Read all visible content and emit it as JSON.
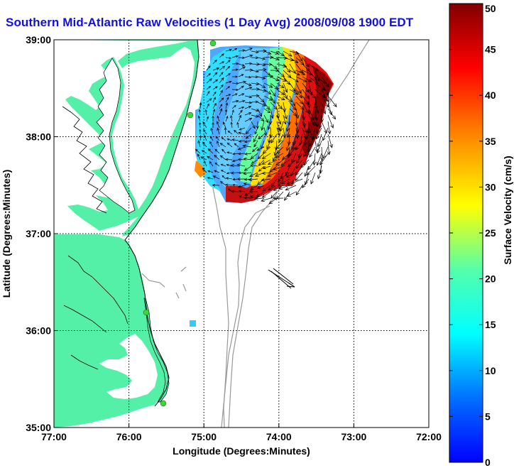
{
  "title": "Southern Mid-Atlantic Raw Velocities (1 Day Avg) 2008/09/08 1900 EDT",
  "map": {
    "x_axis_label": "Longitude (Degrees:Minutes)",
    "y_axis_label": "Latitude (Degrees:Minutes)",
    "x_ticks": [
      "77:00",
      "76:00",
      "75:00",
      "74:00",
      "73:00",
      "72:00"
    ],
    "y_ticks": [
      "39:00",
      "38:00",
      "37:00",
      "36:00",
      "35:00"
    ],
    "lon_range": [
      -77,
      -72
    ],
    "lat_range": [
      35,
      39
    ],
    "grid": "dotted",
    "land_color": "#55f0a8",
    "coastline_color": "#000000",
    "bathymetry_color": "#999999",
    "station_marker_color": "#33dd33",
    "vector_color": "#000000"
  },
  "colorbar": {
    "label": "Surface Velocity (cm/s)",
    "range": [
      0,
      50
    ],
    "ticks": [
      "0",
      "5",
      "10",
      "15",
      "20",
      "25",
      "30",
      "35",
      "40",
      "45",
      "50"
    ],
    "colormap": "jet"
  }
}
